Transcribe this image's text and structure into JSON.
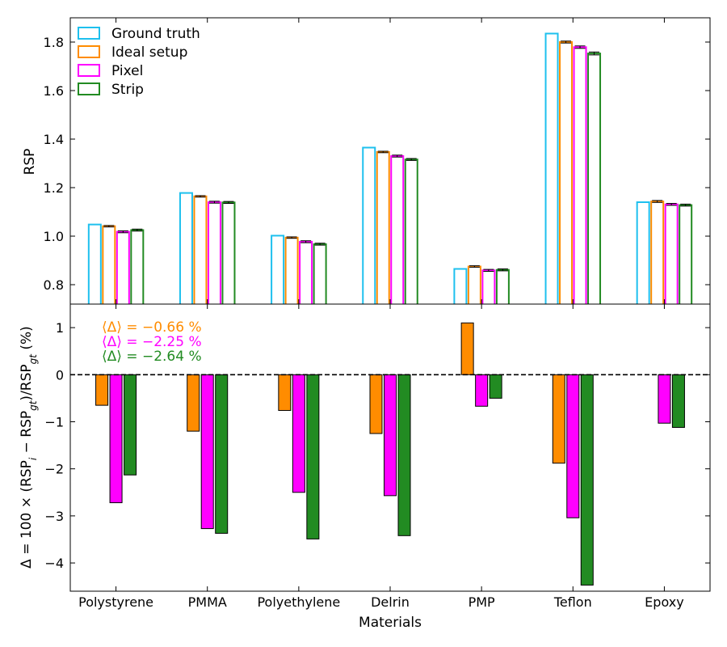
{
  "chart_data": {
    "type": "bar",
    "xlabel": "Materials",
    "categories": [
      "Polystyrene",
      "PMMA",
      "Polyethylene",
      "Delrin",
      "PMP",
      "Teflon",
      "Epoxy"
    ],
    "top": {
      "ylabel": "RSP",
      "ylim": [
        0.72,
        1.9
      ],
      "yticks": [
        0.8,
        1.0,
        1.2,
        1.4,
        1.6,
        1.8
      ],
      "ytick_labels": [
        "0.8",
        "1.0",
        "1.2",
        "1.4",
        "1.6",
        "1.8"
      ],
      "legend_position": "top-left",
      "series": [
        {
          "name": "Ground truth",
          "color": "#1ec0ee",
          "values": [
            1.048,
            1.178,
            1.002,
            1.365,
            0.865,
            1.835,
            1.14
          ],
          "errors": [
            0,
            0,
            0,
            0,
            0,
            0,
            0
          ]
        },
        {
          "name": "Ideal setup",
          "color": "#ff8c00",
          "values": [
            1.041,
            1.164,
            0.994,
            1.347,
            0.875,
            1.8,
            1.143
          ],
          "errors": [
            0.003,
            0.003,
            0.003,
            0.003,
            0.003,
            0.004,
            0.004
          ]
        },
        {
          "name": "Pixel",
          "color": "#ff00ff",
          "values": [
            1.018,
            1.14,
            0.977,
            1.33,
            0.859,
            1.779,
            1.131
          ],
          "errors": [
            0.004,
            0.004,
            0.004,
            0.004,
            0.004,
            0.005,
            0.004
          ]
        },
        {
          "name": "Strip",
          "color": "#228b22",
          "values": [
            1.025,
            1.139,
            0.967,
            1.316,
            0.861,
            1.753,
            1.128
          ],
          "errors": [
            0.004,
            0.004,
            0.004,
            0.004,
            0.004,
            0.006,
            0.004
          ]
        }
      ]
    },
    "bottom": {
      "ylabel_parts": [
        "Δ = 100 × (RSP",
        "i",
        " − RSP",
        "gt",
        ")/RSP",
        "gt",
        " (%)"
      ],
      "ylim": [
        -4.6,
        1.5
      ],
      "yticks": [
        -4,
        -3,
        -2,
        -1,
        0,
        1
      ],
      "ytick_labels": [
        "−4",
        "−3",
        "−2",
        "−1",
        "0",
        "1"
      ],
      "reference_line": 0,
      "series": [
        {
          "name": "Ideal setup",
          "color": "#ff8c00",
          "values": [
            -0.65,
            -1.2,
            -0.76,
            -1.25,
            1.1,
            -1.88,
            0
          ]
        },
        {
          "name": "Pixel",
          "color": "#ff00ff",
          "values": [
            -2.72,
            -3.27,
            -2.5,
            -2.57,
            -0.67,
            -3.04,
            -1.03
          ]
        },
        {
          "name": "Strip",
          "color": "#228b22",
          "values": [
            -2.13,
            -3.37,
            -3.49,
            -3.42,
            -0.5,
            -4.47,
            -1.12
          ]
        }
      ],
      "annotations": [
        {
          "text": "⟨Δ⟩ = −0.66 %",
          "color": "#ff8c00"
        },
        {
          "text": "⟨Δ⟩ = −2.25 %",
          "color": "#ff00ff"
        },
        {
          "text": "⟨Δ⟩ = −2.64 %",
          "color": "#228b22"
        }
      ]
    }
  }
}
